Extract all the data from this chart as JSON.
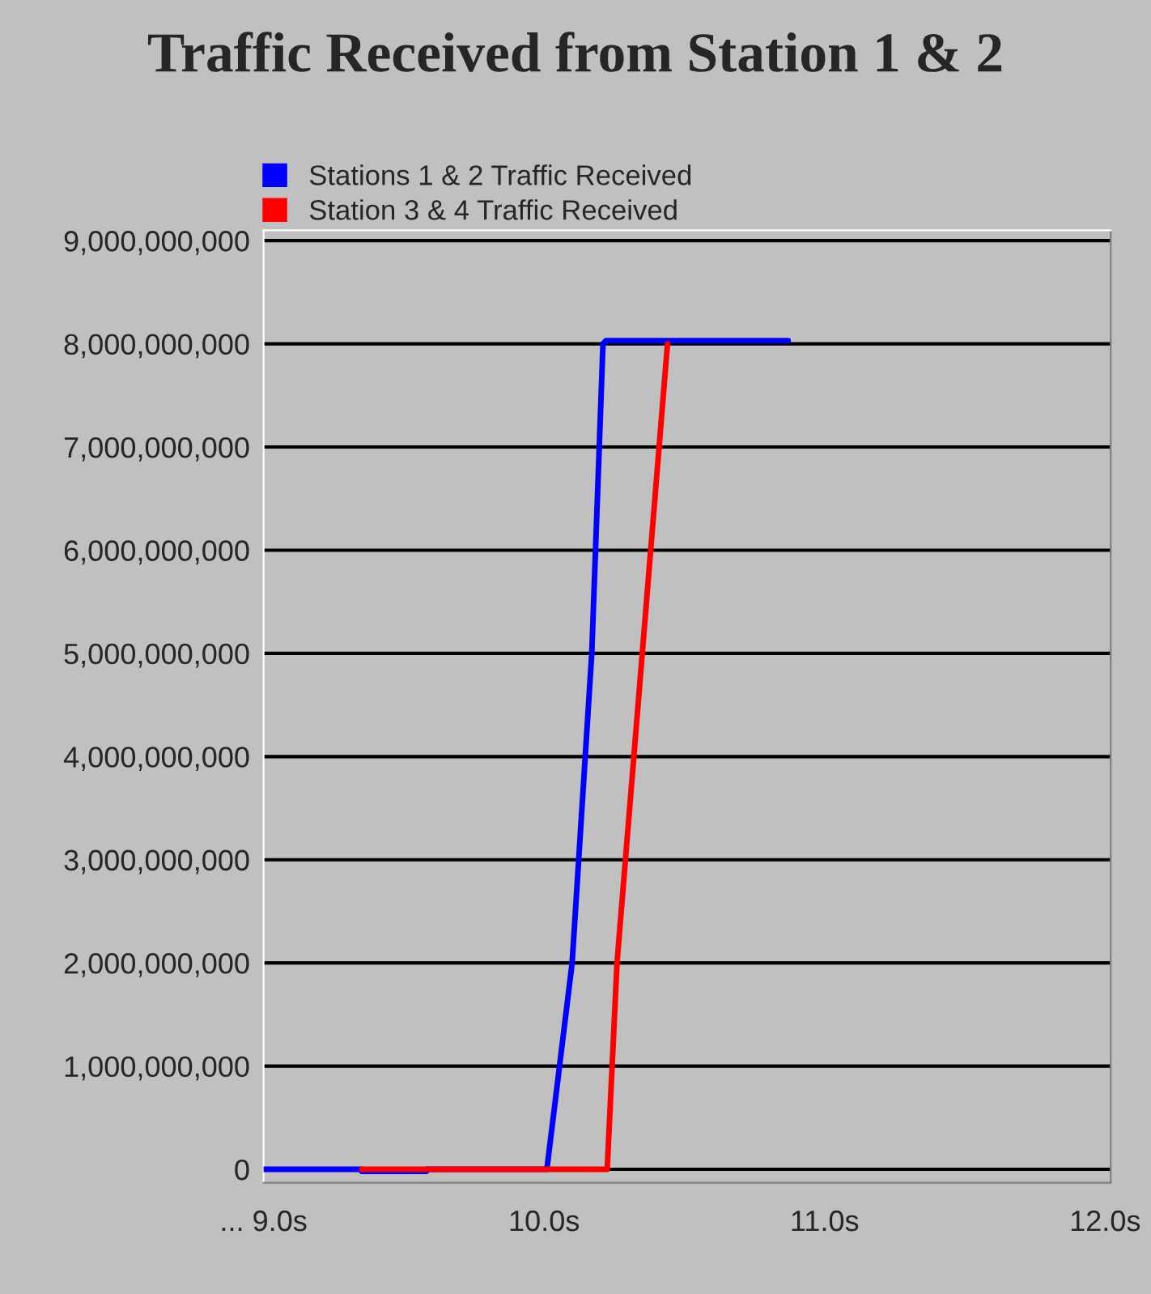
{
  "chart_data": {
    "type": "line",
    "title": "Traffic Received from Station 1 & 2",
    "series": [
      {
        "name": "Stations 1 & 2 Traffic Received",
        "color": "#0000ff",
        "x": [
          9.0,
          9.35,
          9.35,
          9.58,
          9.58,
          10.01,
          10.1,
          10.17,
          10.21,
          10.22,
          10.87
        ],
        "values": [
          0,
          0,
          -20000000,
          -20000000,
          0,
          0,
          2000000000,
          5000000000,
          8000000000,
          8030000000,
          8030000000
        ]
      },
      {
        "name": "Station 3 & 4 Traffic Received",
        "color": "#ff0000",
        "x": [
          9.35,
          10.225,
          10.26,
          10.35,
          10.44
        ],
        "values": [
          0,
          0,
          2000000000,
          5000000000,
          8000000000
        ]
      }
    ],
    "xlim": [
      9.0,
      12.02
    ],
    "ylim": [
      -130000000,
      9100000000
    ],
    "xticks": [
      {
        "value": 9.0,
        "label": "... 9.0s"
      },
      {
        "value": 10.0,
        "label": "10.0s"
      },
      {
        "value": 11.0,
        "label": "11.0s"
      },
      {
        "value": 12.0,
        "label": "12.0s"
      }
    ],
    "yticks": [
      {
        "value": 0,
        "label": "0"
      },
      {
        "value": 1000000000,
        "label": "1,000,000,000"
      },
      {
        "value": 2000000000,
        "label": "2,000,000,000"
      },
      {
        "value": 3000000000,
        "label": "3,000,000,000"
      },
      {
        "value": 4000000000,
        "label": "4,000,000,000"
      },
      {
        "value": 5000000000,
        "label": "5,000,000,000"
      },
      {
        "value": 6000000000,
        "label": "6,000,000,000"
      },
      {
        "value": 7000000000,
        "label": "7,000,000,000"
      },
      {
        "value": 8000000000,
        "label": "8,000,000,000"
      },
      {
        "value": 9000000000,
        "label": "9,000,000,000"
      }
    ],
    "grid": "y",
    "legend": "top left",
    "marker": "none",
    "line_style": "solid"
  }
}
